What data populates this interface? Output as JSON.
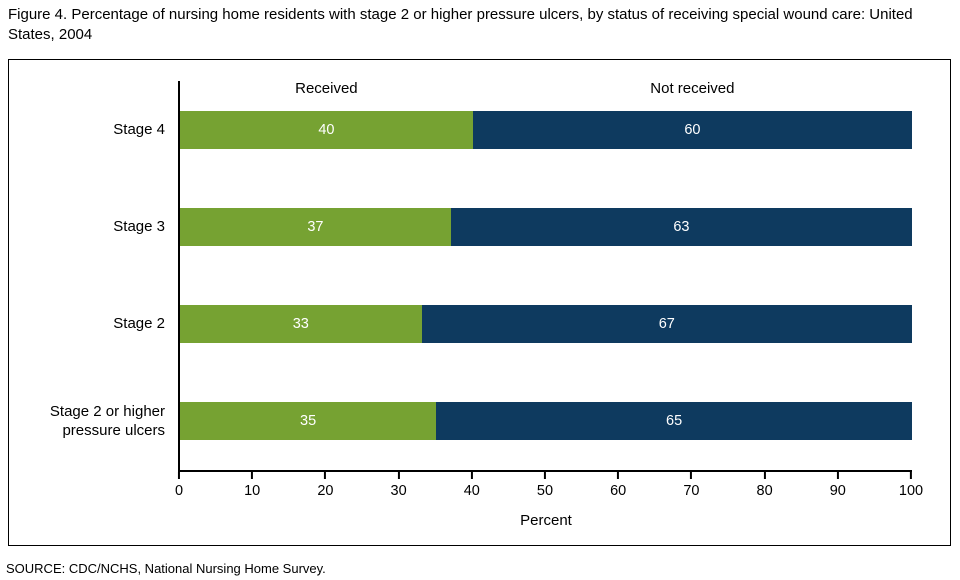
{
  "title": "Figure 4.  Percentage of nursing home residents with stage 2 or higher pressure ulcers, by status of receiving special wound care: United States, 2004",
  "source": "SOURCE: CDC/NCHS, National Nursing Home Survey.",
  "chart_data": {
    "type": "bar",
    "orientation": "horizontal",
    "stacked": true,
    "title": "Percentage of nursing home residents with stage 2 or higher pressure ulcers, by status of receiving special wound care: United States, 2004",
    "categories": [
      "Stage 4",
      "Stage 3",
      "Stage 2",
      "Stage 2 or higher pressure ulcers"
    ],
    "series": [
      {
        "name": "Received",
        "values": [
          40,
          37,
          33,
          35
        ],
        "color": "#76A232"
      },
      {
        "name": "Not received",
        "values": [
          60,
          63,
          67,
          65
        ],
        "color": "#0E3A5F"
      }
    ],
    "xlabel": "Percent",
    "xlim": [
      0,
      100
    ],
    "xticks": [
      0,
      10,
      20,
      30,
      40,
      50,
      60,
      70,
      80,
      90,
      100
    ],
    "value_labels": true,
    "legend_position": "top-inside",
    "grid": false
  }
}
